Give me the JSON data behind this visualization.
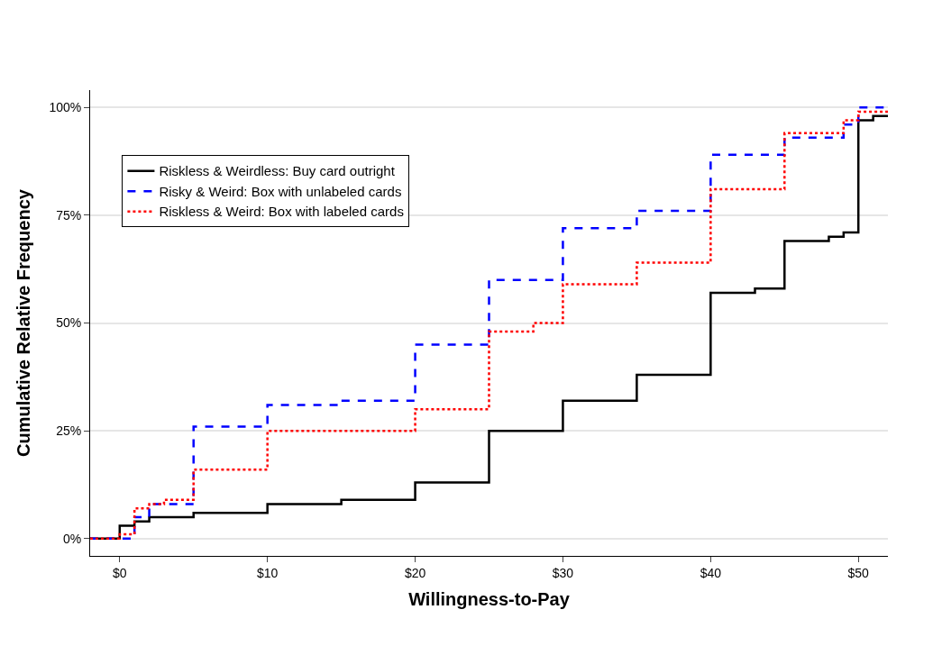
{
  "chart_data": {
    "type": "step",
    "xlabel": "Willingness-to-Pay",
    "ylabel": "Cumulative Relative Frequency",
    "xlim": [
      -2,
      52
    ],
    "ylim": [
      -4,
      104
    ],
    "xticks": [
      {
        "value": 0,
        "label": "$0"
      },
      {
        "value": 10,
        "label": "$10"
      },
      {
        "value": 20,
        "label": "$20"
      },
      {
        "value": 30,
        "label": "$30"
      },
      {
        "value": 40,
        "label": "$40"
      },
      {
        "value": 50,
        "label": "$50"
      }
    ],
    "yticks": [
      {
        "value": 0,
        "label": "0%"
      },
      {
        "value": 25,
        "label": "25%"
      },
      {
        "value": 50,
        "label": "50%"
      },
      {
        "value": 75,
        "label": "75%"
      },
      {
        "value": 100,
        "label": "100%"
      }
    ],
    "grid": "y",
    "legend": "top left",
    "series": [
      {
        "name": "Riskless & Weirdless: Buy card outright",
        "color": "#000000",
        "line_style": "solid",
        "x": [
          -2,
          0,
          1,
          2,
          5,
          10,
          15,
          20,
          25,
          30,
          35,
          40,
          43,
          45,
          48,
          49,
          50,
          51,
          52
        ],
        "values": [
          0,
          3,
          4,
          5,
          6,
          8,
          9,
          13,
          25,
          32,
          38,
          57,
          58,
          69,
          70,
          71,
          97,
          98,
          98
        ]
      },
      {
        "name": "Risky & Weird: Box with unlabeled cards",
        "color": "#0000ff",
        "line_style": "dashed",
        "x": [
          -2,
          1,
          2,
          5,
          10,
          15,
          20,
          25,
          30,
          35,
          40,
          45,
          49,
          50,
          52
        ],
        "values": [
          0,
          5,
          8,
          26,
          31,
          32,
          45,
          60,
          72,
          76,
          89,
          93,
          96,
          100,
          100
        ]
      },
      {
        "name": "Riskless & Weird: Box with labeled cards",
        "color": "#ff0000",
        "line_style": "dotted",
        "x": [
          -2,
          0,
          1,
          2,
          3,
          5,
          10,
          20,
          25,
          28,
          30,
          35,
          40,
          45,
          49,
          50,
          52
        ],
        "values": [
          0,
          1,
          7,
          8,
          9,
          16,
          25,
          30,
          48,
          50,
          59,
          64,
          81,
          94,
          97,
          99,
          99
        ]
      }
    ]
  }
}
